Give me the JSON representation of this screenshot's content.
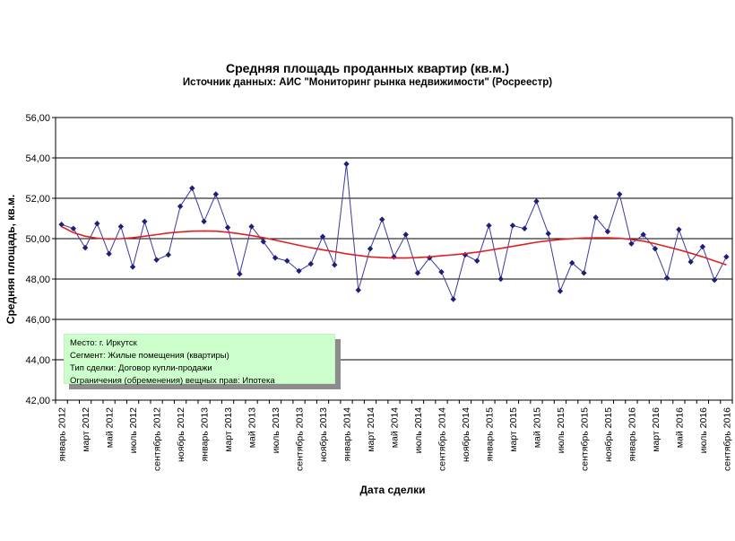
{
  "chart_data": {
    "type": "line",
    "title": "Средняя площадь проданных квартир (кв.м.)",
    "subtitle": "Источник данных: АИС \"Мониторинг рынка недвижимости\" (Росреестр)",
    "xlabel": "Дата сделки",
    "ylabel": "Средняя площадь, кв.м.",
    "ylim": [
      42,
      56
    ],
    "y_ticks": [
      "42,00",
      "44,00",
      "46,00",
      "48,00",
      "50,00",
      "52,00",
      "54,00",
      "56,00"
    ],
    "grid": "horizontal",
    "x": [
      "январь 2012",
      "февраль 2012",
      "март 2012",
      "апрель 2012",
      "май 2012",
      "июнь 2012",
      "июль 2012",
      "август 2012",
      "сентябрь 2012",
      "октябрь 2012",
      "ноябрь 2012",
      "декабрь 2012",
      "январь 2013",
      "февраль 2013",
      "март 2013",
      "апрель 2013",
      "май 2013",
      "июнь 2013",
      "июль 2013",
      "август 2013",
      "сентябрь 2013",
      "октябрь 2013",
      "ноябрь 2013",
      "декабрь 2013",
      "январь 2014",
      "февраль 2014",
      "март 2014",
      "апрель 2014",
      "май 2014",
      "июнь 2014",
      "июль 2014",
      "август 2014",
      "сентябрь 2014",
      "октябрь 2014",
      "ноябрь 2014",
      "декабрь 2014",
      "январь 2015",
      "февраль 2015",
      "март 2015",
      "апрель 2015",
      "май 2015",
      "июнь 2015",
      "июль 2015",
      "август 2015",
      "сентябрь 2015",
      "октябрь 2015",
      "ноябрь 2015",
      "декабрь 2015",
      "январь 2016",
      "февраль 2016",
      "март 2016",
      "апрель 2016",
      "май 2016",
      "июнь 2016",
      "июль 2016",
      "август 2016",
      "сентябрь 2016"
    ],
    "x_tick_labels": [
      "январь 2012",
      "март 2012",
      "май 2012",
      "июль 2012",
      "сентябрь 2012",
      "ноябрь 2012",
      "январь 2013",
      "март 2013",
      "май 2013",
      "июль 2013",
      "сентябрь 2013",
      "ноябрь 2013",
      "январь 2014",
      "март 2014",
      "май 2014",
      "июль 2014",
      "сентябрь 2014",
      "ноябрь 2014",
      "январь 2015",
      "март 2015",
      "май 2015",
      "июль 2015",
      "сентябрь 2015",
      "ноябрь 2015",
      "январь 2016",
      "март 2016",
      "май 2016",
      "июль 2016",
      "сентябрь 2016"
    ],
    "series": [
      {
        "values": [
          50.7,
          50.5,
          49.55,
          50.75,
          49.25,
          50.6,
          48.6,
          50.85,
          48.95,
          49.2,
          51.6,
          52.5,
          50.85,
          52.2,
          50.55,
          48.25,
          50.6,
          49.85,
          49.05,
          48.9,
          48.4,
          48.75,
          50.1,
          48.7,
          53.7,
          47.45,
          49.5,
          50.95,
          49.1,
          50.2,
          48.3,
          49.05,
          48.35,
          47.0,
          49.2,
          48.9,
          50.65,
          48.0,
          50.65,
          50.5,
          51.85,
          50.25,
          47.4,
          48.8,
          48.3,
          51.05,
          50.35,
          52.2,
          49.75,
          50.2,
          49.5,
          48.05,
          50.45,
          48.85,
          49.6,
          47.95,
          49.1
        ],
        "color": "#1f1f7a",
        "marker": "diamond"
      },
      {
        "type": "trend",
        "values": [
          50.6,
          50.3,
          50.12,
          50.02,
          49.98,
          50.0,
          50.05,
          50.12,
          50.2,
          50.28,
          50.33,
          50.37,
          50.38,
          50.37,
          50.32,
          50.24,
          50.15,
          50.05,
          49.93,
          49.8,
          49.67,
          49.55,
          49.45,
          49.35,
          49.25,
          49.17,
          49.1,
          49.06,
          49.04,
          49.04,
          49.06,
          49.1,
          49.15,
          49.2,
          49.26,
          49.33,
          49.42,
          49.52,
          49.62,
          49.72,
          49.82,
          49.9,
          49.96,
          50.0,
          50.03,
          50.04,
          50.04,
          50.02,
          49.96,
          49.88,
          49.75,
          49.6,
          49.45,
          49.28,
          49.1,
          48.9,
          48.7
        ],
        "color": "#e02020"
      }
    ]
  },
  "infobox": {
    "lines": [
      "Место: г. Иркутск",
      "Сегмент: Жилые помещения (квартиры)",
      "Тип сделки: Договор купли-продажи",
      "Ограничения (обременения) вещных прав: Ипотека"
    ]
  }
}
